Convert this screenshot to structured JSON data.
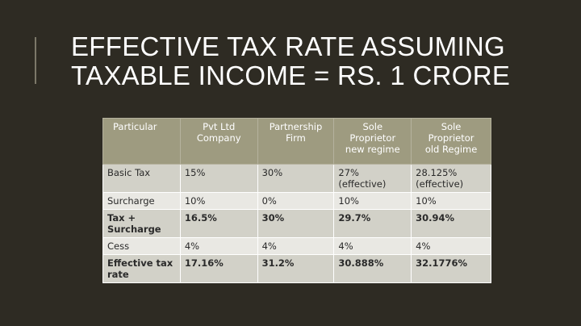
{
  "title": {
    "line1": "EFFECTIVE TAX RATE ASSUMING",
    "line2": "TAXABLE INCOME = RS. 1 CRORE"
  },
  "table": {
    "headers": [
      [
        "Particular"
      ],
      [
        "Pvt Ltd",
        "Company"
      ],
      [
        "Partnership",
        "Firm"
      ],
      [
        "Sole",
        "Proprietor",
        "new regime"
      ],
      [
        "Sole",
        "Proprietor",
        "old Regime"
      ]
    ],
    "rows": [
      {
        "label": [
          "Basic Tax"
        ],
        "cells": [
          [
            "15%"
          ],
          [
            "30%"
          ],
          [
            "27%",
            "(effective)"
          ],
          [
            "28.125%",
            "(effective)"
          ]
        ],
        "bold": false
      },
      {
        "label": [
          "Surcharge"
        ],
        "cells": [
          [
            "10%"
          ],
          [
            "0%"
          ],
          [
            "10%"
          ],
          [
            "10%"
          ]
        ],
        "bold": false
      },
      {
        "label": [
          "Tax +",
          "Surcharge"
        ],
        "cells": [
          [
            "16.5%"
          ],
          [
            "30%"
          ],
          [
            "29.7%"
          ],
          [
            "30.94%"
          ]
        ],
        "bold": true
      },
      {
        "label": [
          "Cess"
        ],
        "cells": [
          [
            "4%"
          ],
          [
            "4%"
          ],
          [
            "4%"
          ],
          [
            "4%"
          ]
        ],
        "bold": false
      },
      {
        "label": [
          "Effective tax",
          "rate"
        ],
        "cells": [
          [
            "17.16%"
          ],
          [
            "31.2%"
          ],
          [
            "30.888%"
          ],
          [
            "32.1776%"
          ]
        ],
        "bold": true
      }
    ]
  }
}
